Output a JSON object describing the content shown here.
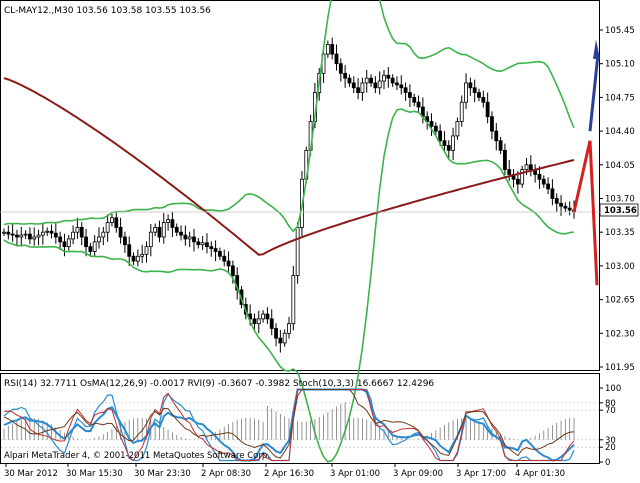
{
  "main": {
    "header": "CL-MAY12.,M30  103.56 103.58 103.55 103.56",
    "current_price_label": "103.56",
    "yticks": [
      "105.45",
      "105.10",
      "104.75",
      "104.40",
      "104.05",
      "103.70",
      "103.35",
      "103.00",
      "102.65",
      "102.30",
      "101.95"
    ],
    "ylim": [
      101.95,
      105.45
    ],
    "colors": {
      "candle": "#000000",
      "bands": "#3cb44b",
      "ma": "#8b1a1a",
      "up_arrow": "#2a3f9a",
      "down_arrow": "#d62020",
      "current_line": "#c0c0c0"
    }
  },
  "sub": {
    "header": "RSI(14) 32.7711  OsMA(12,26,9) -0.0017  RVI(9) -0.3607 -0.3982  Stoch(10,3,3) 16.6667 12.4296",
    "watermark": "Alpari MetaTrader 4, © 2001-2011 MetaQuotes Software Corp.",
    "yticks": [
      "100",
      "80",
      "70",
      "30",
      "20",
      "0"
    ],
    "colors": {
      "rsi": "#2a8bd0",
      "stoch_main": "#2a8bd0",
      "stoch_signal": "#c03030",
      "osma": "#7a7a7a",
      "rvi": "#6b3a1a",
      "band": "#c0c0c0"
    }
  },
  "xaxis": {
    "labels": [
      "30 Mar 2012",
      "30 Mar 15:30",
      "30 Mar 23:30",
      "2 Apr 08:30",
      "2 Apr 16:30",
      "3 Apr 01:00",
      "3 Apr 09:00",
      "3 Apr 17:00",
      "4 Apr 01:30"
    ]
  },
  "chart_data": {
    "type": "candlestick",
    "symbol": "CL-MAY12.",
    "timeframe": "M30",
    "title": "CL-MAY12.,M30  103.56 103.58 103.55 103.56",
    "xlabel": "",
    "ylabel": "",
    "ylim": [
      101.95,
      105.45
    ],
    "close_series": [
      103.35,
      103.33,
      103.32,
      103.3,
      103.32,
      103.33,
      103.28,
      103.3,
      103.32,
      103.35,
      103.36,
      103.34,
      103.3,
      103.25,
      103.2,
      103.28,
      103.35,
      103.4,
      103.3,
      103.2,
      103.15,
      103.25,
      103.3,
      103.35,
      103.45,
      103.5,
      103.4,
      103.3,
      103.22,
      103.1,
      103.05,
      103.1,
      103.12,
      103.2,
      103.35,
      103.4,
      103.3,
      103.45,
      103.48,
      103.4,
      103.35,
      103.32,
      103.28,
      103.3,
      103.25,
      103.22,
      103.24,
      103.2,
      103.18,
      103.15,
      103.1,
      103.05,
      103.0,
      102.9,
      102.75,
      102.6,
      102.5,
      102.45,
      102.4,
      102.45,
      102.5,
      102.45,
      102.35,
      102.25,
      102.2,
      102.3,
      102.4,
      102.9,
      103.4,
      103.9,
      104.2,
      104.5,
      104.8,
      105.0,
      105.2,
      105.3,
      105.2,
      105.1,
      105.0,
      104.95,
      104.9,
      104.85,
      104.8,
      104.9,
      104.95,
      104.9,
      104.85,
      104.92,
      104.98,
      104.95,
      104.9,
      104.88,
      104.85,
      104.8,
      104.75,
      104.7,
      104.65,
      104.55,
      104.5,
      104.45,
      104.4,
      104.3,
      104.25,
      104.2,
      104.35,
      104.5,
      104.7,
      104.9,
      104.85,
      104.8,
      104.75,
      104.7,
      104.55,
      104.4,
      104.3,
      104.2,
      104.0,
      103.95,
      103.9,
      103.85,
      104.0,
      104.05,
      104.0,
      103.95,
      103.9,
      103.85,
      103.8,
      103.7,
      103.65,
      103.62,
      103.6,
      103.58,
      103.56
    ],
    "indicators": {
      "ma_long_endpoints": {
        "start": 104.9,
        "end": 104.05
      },
      "bollinger": "upper/middle/lower bands shown in green"
    },
    "subwindow": {
      "rsi": 32.7711,
      "osma": -0.0017,
      "rvi": [
        -0.3607,
        -0.3982
      ],
      "stoch": [
        16.6667,
        12.4296
      ],
      "levels": [
        70,
        30,
        20,
        80
      ]
    }
  }
}
